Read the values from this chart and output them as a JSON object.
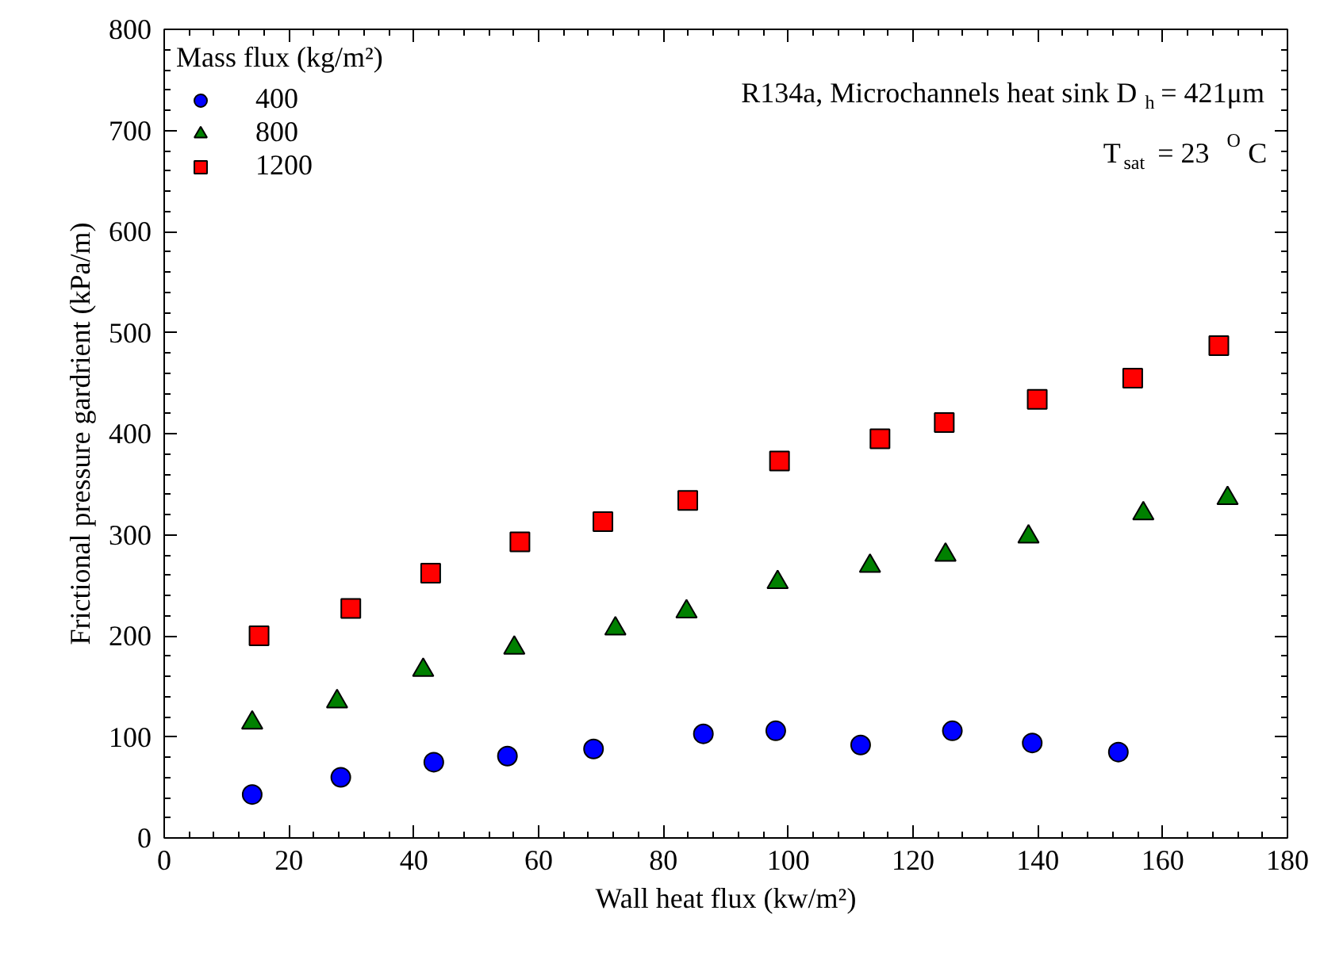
{
  "chart_data": {
    "type": "scatter",
    "xlabel": "Wall heat flux (kw/m²)",
    "ylabel": "Frictional pressure gardrient (kPa/m)",
    "legend_title": "Mass flux (kg/m²)",
    "annotations": [
      "R134a, Microchannels heat sink D$_{h}$= 421μm",
      "T$_{sat}$ = 23 $^{O}$C"
    ],
    "xlim": [
      0,
      180
    ],
    "xticks": [
      0,
      20,
      40,
      60,
      80,
      100,
      120,
      140,
      160,
      180
    ],
    "ylim": [
      0,
      800
    ],
    "yticks": [
      0,
      100,
      200,
      300,
      400,
      500,
      600,
      700,
      800
    ],
    "grid": false,
    "legend": "top left",
    "series": [
      {
        "name": "400",
        "color": "#0000ff",
        "marker": "circle",
        "x": [
          14.1,
          28.3,
          43.2,
          55.0,
          68.8,
          86.4,
          98.0,
          111.6,
          126.3,
          139.1,
          152.9
        ],
        "values": [
          43,
          60,
          75,
          81,
          88,
          103,
          106,
          92,
          106,
          94,
          85
        ]
      },
      {
        "name": "800",
        "color": "#008000",
        "marker": "triangle",
        "x": [
          14.1,
          27.7,
          41.5,
          56.1,
          72.3,
          83.7,
          98.3,
          113.1,
          125.2,
          138.5,
          156.9,
          170.4
        ],
        "values": [
          114,
          135,
          166,
          188,
          207,
          224,
          253,
          269,
          280,
          298,
          321,
          336
        ]
      },
      {
        "name": "1200",
        "color": "#ff0000",
        "marker": "square",
        "x": [
          15.2,
          29.9,
          42.7,
          57.0,
          70.3,
          83.9,
          98.6,
          114.7,
          125.0,
          139.9,
          155.2,
          169.0
        ],
        "values": [
          200,
          227,
          262,
          293,
          313,
          334,
          373,
          395,
          411,
          434,
          455,
          487
        ]
      }
    ]
  }
}
